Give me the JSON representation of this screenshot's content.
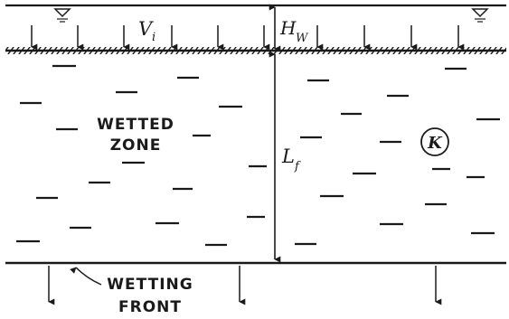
{
  "symbols": {
    "infiltration_rate": "V",
    "infiltration_rate_sub": "i",
    "ponded_depth": "H",
    "ponded_depth_sub": "W",
    "front_depth": "L",
    "front_depth_sub": "f",
    "conductivity": "K"
  },
  "labels": {
    "wetted_zone_line1": "WETTED",
    "wetted_zone_line2": "ZONE",
    "wetting_front_line1": "WETTING",
    "wetting_front_line2": "FRONT"
  },
  "icons": {
    "water_surface": "inverted-triangle-icon",
    "downward_flow": "down-arrow-icon"
  }
}
